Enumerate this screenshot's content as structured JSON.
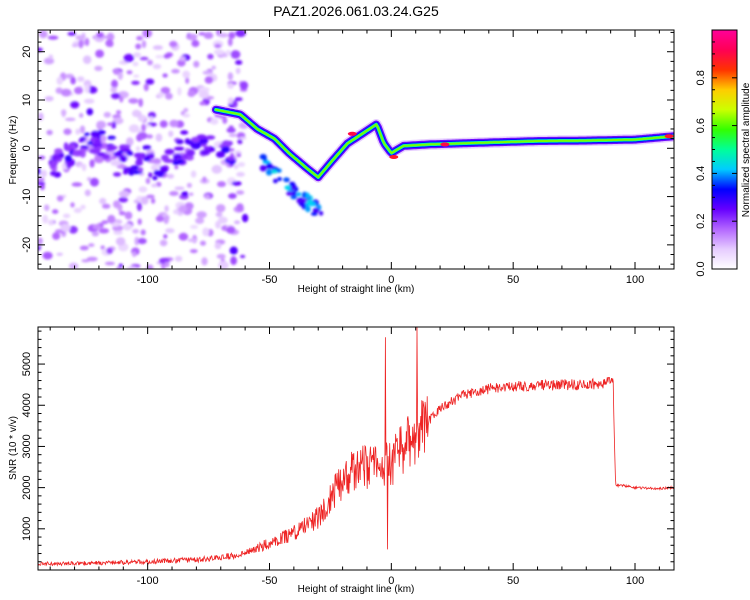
{
  "chart_data": [
    {
      "type": "heatmap",
      "title": "PAZ1.2026.061.03.24.G25",
      "xlabel": "Height of straight line (km)",
      "ylabel": "Frequency (Hz)",
      "xlim": [
        -145,
        116
      ],
      "ylim": [
        -25,
        24.5
      ],
      "x_ticks": [
        -100,
        -50,
        0,
        50,
        100
      ],
      "x_tick_labels": [
        "-100",
        "-50",
        "0",
        "50",
        "100"
      ],
      "y_ticks": [
        -20,
        -10,
        0,
        10,
        20
      ],
      "y_tick_labels": [
        "-20",
        "-10",
        "0",
        "10",
        "20"
      ],
      "colorbar": {
        "label": "Normalized spectral amplitude",
        "range": [
          0,
          1
        ],
        "ticks": [
          0.0,
          0.2,
          0.4,
          0.6,
          0.8
        ],
        "tick_labels": [
          "0.0",
          "0.2",
          "0.4",
          "0.6",
          "0.8"
        ],
        "colors": [
          "#ffffff",
          "#e6ccff",
          "#b366ff",
          "#6600ff",
          "#0000ff",
          "#00ccff",
          "#00ff99",
          "#33ff00",
          "#ccff00",
          "#ffcc00",
          "#ff3300",
          "#ff0055",
          "#ff0099"
        ]
      },
      "features": [
        {
          "name": "main trace",
          "x": [
            -72,
            -62,
            -55,
            -48,
            -42,
            -35,
            -30,
            -25,
            -18,
            -12,
            -6,
            -3,
            0,
            5,
            15,
            40,
            60,
            80,
            100,
            116
          ],
          "y": [
            8,
            7,
            4,
            2,
            -1,
            -4,
            -6,
            -3,
            1,
            3,
            5,
            1,
            -1,
            0.5,
            0.8,
            1.2,
            1.5,
            1.6,
            1.8,
            2.5
          ]
        },
        {
          "name": "low-level noise",
          "x_range": [
            -145,
            -60
          ],
          "y_range": [
            -25,
            24
          ]
        }
      ]
    },
    {
      "type": "line",
      "xlabel": "Height of straight line (km)",
      "ylabel": "SNR (10 * v/v)",
      "xlim": [
        -145,
        116
      ],
      "ylim": [
        0,
        5900
      ],
      "x_ticks": [
        -100,
        -50,
        0,
        50,
        100
      ],
      "x_tick_labels": [
        "-100",
        "-50",
        "0",
        "50",
        "100"
      ],
      "y_ticks": [
        1000,
        2000,
        3000,
        4000,
        5000
      ],
      "y_tick_labels": [
        "1000",
        "2000",
        "3000",
        "4000",
        "5000"
      ],
      "color": "#ee2222",
      "series": [
        {
          "name": "SNR",
          "x": [
            -145,
            -120,
            -100,
            -80,
            -70,
            -60,
            -50,
            -40,
            -30,
            -25,
            -20,
            -15,
            -10,
            -5,
            0,
            5,
            10,
            15,
            20,
            25,
            30,
            35,
            40,
            50,
            60,
            70,
            80,
            88,
            91,
            92,
            95,
            100,
            110,
            116
          ],
          "y": [
            150,
            170,
            200,
            250,
            300,
            400,
            650,
            900,
            1300,
            1800,
            2200,
            2500,
            2500,
            2500,
            2600,
            3000,
            3300,
            3600,
            3900,
            4100,
            4250,
            4350,
            4400,
            4450,
            4480,
            4500,
            4500,
            4550,
            4600,
            2050,
            2050,
            2000,
            1980,
            2000
          ]
        }
      ],
      "spikes": [
        {
          "x": -2.5,
          "y": 5650
        },
        {
          "x": 10.5,
          "y": 5900
        },
        {
          "x": -1.5,
          "y": 500
        }
      ]
    }
  ]
}
